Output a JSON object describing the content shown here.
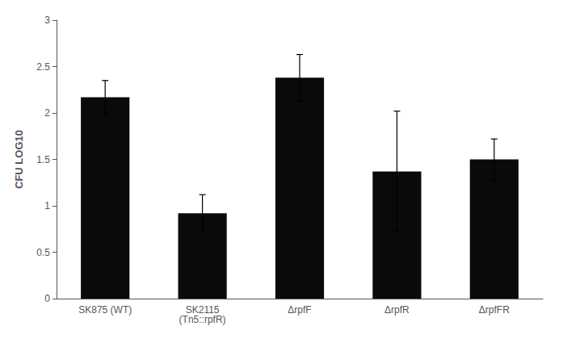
{
  "chart_data": {
    "type": "bar",
    "categories": [
      "SK875 (WT)",
      "SK2115\n(Tn5::rpfR)",
      "ΔrpfF",
      "ΔrpfR",
      "ΔrpfFR"
    ],
    "values": [
      2.17,
      0.92,
      2.38,
      1.37,
      1.5
    ],
    "errors": [
      0.18,
      0.2,
      0.25,
      0.65,
      0.22
    ],
    "color": "#0a0a0a",
    "ylabel": "CFU LOG10",
    "ylim": [
      0,
      3.0
    ],
    "yticks": [
      0,
      0.5,
      1,
      1.5,
      2,
      2.5,
      3
    ],
    "grid": false
  }
}
